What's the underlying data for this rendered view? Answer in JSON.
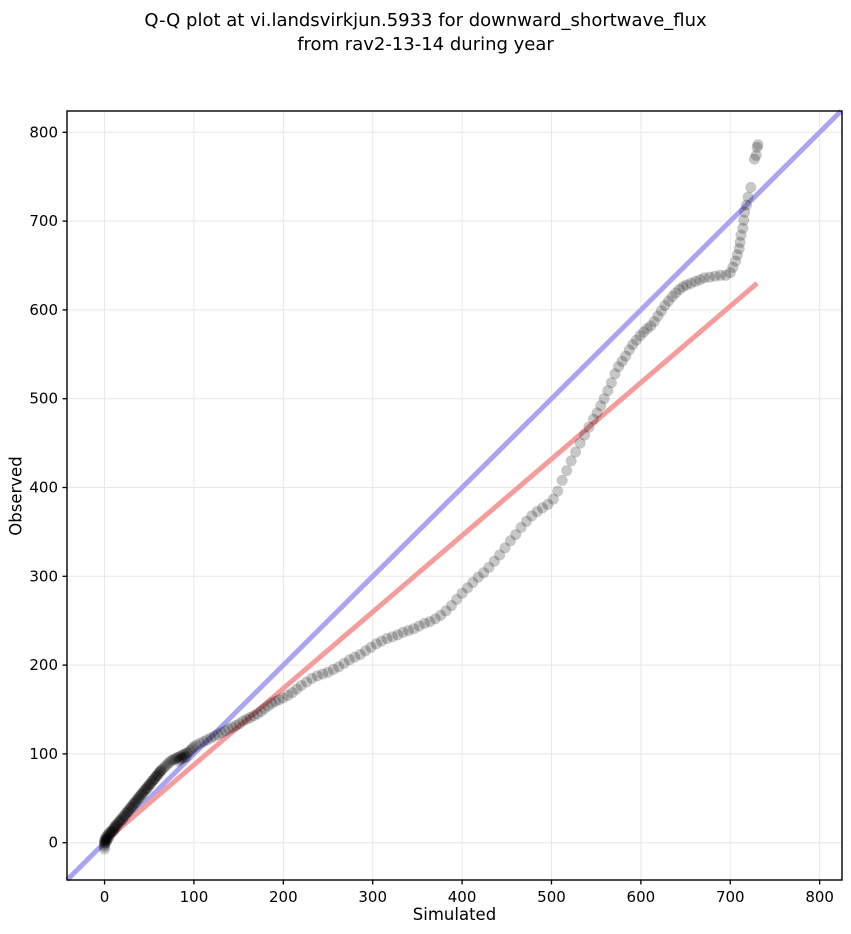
{
  "title": {
    "line1": "Q-Q plot at vi.landsvirkjun.5933 for downward_shortwave_flux",
    "line2": "from rav2-13-14 during year"
  },
  "colors": {
    "background": "#ffffff",
    "grid": "#e8e8e8",
    "spine": "#000000",
    "tick": "#000000",
    "identity_line": "#a9a5f3",
    "regression_line": "#f59c9c",
    "points": "#000000"
  },
  "chart_data": {
    "type": "scatter",
    "title": "Q-Q plot at vi.landsvirkjun.5933 for downward_shortwave_flux from rav2-13-14 during year",
    "xlabel": "Simulated",
    "ylabel": "Observed",
    "xlim": [
      -42,
      825
    ],
    "ylim": [
      -42,
      824
    ],
    "xticks": [
      0,
      100,
      200,
      300,
      400,
      500,
      600,
      700,
      800
    ],
    "yticks": [
      0,
      100,
      200,
      300,
      400,
      500,
      600,
      700,
      800
    ],
    "grid": true,
    "legend": "none",
    "lines": [
      {
        "name": "identity",
        "role": "y-equals-x-reference",
        "color": "#a9a5f3",
        "width": 5,
        "x1": -42,
        "y1": -42,
        "x2": 824,
        "y2": 824
      },
      {
        "name": "regression",
        "role": "linear-fit",
        "color": "#f59c9c",
        "width": 5,
        "x1": -3,
        "y1": -1,
        "x2": 730,
        "y2": 630
      }
    ],
    "points_style": {
      "color": "#000000",
      "opacity": 0.22,
      "radius_px": 5.5
    },
    "points": [
      [
        0,
        -7
      ],
      [
        0,
        -4
      ],
      [
        0,
        -2
      ],
      [
        0,
        0
      ],
      [
        0,
        2
      ],
      [
        1,
        0
      ],
      [
        1,
        3
      ],
      [
        1,
        5
      ],
      [
        2,
        1
      ],
      [
        2,
        4
      ],
      [
        2,
        7
      ],
      [
        3,
        3
      ],
      [
        3,
        6
      ],
      [
        4,
        5
      ],
      [
        4,
        9
      ],
      [
        5,
        7
      ],
      [
        5,
        11
      ],
      [
        6,
        9
      ],
      [
        7,
        11
      ],
      [
        7,
        13
      ],
      [
        8,
        12
      ],
      [
        9,
        14
      ],
      [
        10,
        13
      ],
      [
        10,
        16
      ],
      [
        11,
        17
      ],
      [
        12,
        16
      ],
      [
        12,
        19
      ],
      [
        13,
        20
      ],
      [
        14,
        19
      ],
      [
        15,
        22
      ],
      [
        16,
        23
      ],
      [
        17,
        25
      ],
      [
        18,
        24
      ],
      [
        19,
        27
      ],
      [
        20,
        26
      ],
      [
        21,
        29
      ],
      [
        22,
        31
      ],
      [
        23,
        30
      ],
      [
        24,
        33
      ],
      [
        25,
        34
      ],
      [
        26,
        36
      ],
      [
        27,
        35
      ],
      [
        28,
        38
      ],
      [
        29,
        39
      ],
      [
        30,
        41
      ],
      [
        31,
        40
      ],
      [
        32,
        43
      ],
      [
        33,
        44
      ],
      [
        34,
        46
      ],
      [
        35,
        45
      ],
      [
        36,
        48
      ],
      [
        37,
        49
      ],
      [
        38,
        51
      ],
      [
        39,
        50
      ],
      [
        40,
        53
      ],
      [
        41,
        54
      ],
      [
        42,
        56
      ],
      [
        43,
        55
      ],
      [
        44,
        58
      ],
      [
        45,
        59
      ],
      [
        46,
        60
      ],
      [
        47,
        62
      ],
      [
        48,
        61
      ],
      [
        49,
        64
      ],
      [
        50,
        65
      ],
      [
        51,
        66
      ],
      [
        52,
        67
      ],
      [
        53,
        69
      ],
      [
        54,
        70
      ],
      [
        55,
        71
      ],
      [
        56,
        72
      ],
      [
        57,
        74
      ],
      [
        58,
        75
      ],
      [
        59,
        76
      ],
      [
        60,
        77
      ],
      [
        61,
        79
      ],
      [
        62,
        80
      ],
      [
        63,
        81
      ],
      [
        64,
        82
      ],
      [
        66,
        84
      ],
      [
        68,
        86
      ],
      [
        70,
        88
      ],
      [
        72,
        90
      ],
      [
        74,
        92
      ],
      [
        76,
        93
      ],
      [
        78,
        94
      ],
      [
        80,
        95
      ],
      [
        82,
        96
      ],
      [
        83,
        92
      ],
      [
        84,
        97
      ],
      [
        85,
        94
      ],
      [
        86,
        98
      ],
      [
        87,
        95
      ],
      [
        88,
        99
      ],
      [
        89,
        96
      ],
      [
        90,
        100
      ],
      [
        91,
        97
      ],
      [
        92,
        101
      ],
      [
        94,
        102
      ],
      [
        96,
        104
      ],
      [
        98,
        106
      ],
      [
        100,
        108
      ],
      [
        103,
        110
      ],
      [
        107,
        112
      ],
      [
        111,
        114
      ],
      [
        115,
        116
      ],
      [
        119,
        118
      ],
      [
        123,
        120
      ],
      [
        127,
        122
      ],
      [
        131,
        124
      ],
      [
        135,
        126
      ],
      [
        139,
        128
      ],
      [
        143,
        130
      ],
      [
        147,
        132
      ],
      [
        151,
        134
      ],
      [
        155,
        137
      ],
      [
        159,
        139
      ],
      [
        163,
        141
      ],
      [
        167,
        143
      ],
      [
        171,
        145
      ],
      [
        175,
        148
      ],
      [
        179,
        151
      ],
      [
        183,
        154
      ],
      [
        187,
        157
      ],
      [
        191,
        159
      ],
      [
        195,
        161
      ],
      [
        200,
        163
      ],
      [
        205,
        166
      ],
      [
        210,
        169
      ],
      [
        215,
        173
      ],
      [
        220,
        177
      ],
      [
        226,
        181
      ],
      [
        232,
        185
      ],
      [
        238,
        188
      ],
      [
        244,
        190
      ],
      [
        250,
        192
      ],
      [
        256,
        195
      ],
      [
        262,
        198
      ],
      [
        268,
        202
      ],
      [
        274,
        206
      ],
      [
        280,
        209
      ],
      [
        286,
        212
      ],
      [
        292,
        216
      ],
      [
        298,
        220
      ],
      [
        304,
        224
      ],
      [
        310,
        227
      ],
      [
        316,
        230
      ],
      [
        322,
        232
      ],
      [
        328,
        234
      ],
      [
        334,
        237
      ],
      [
        340,
        239
      ],
      [
        346,
        241
      ],
      [
        352,
        244
      ],
      [
        358,
        247
      ],
      [
        364,
        249
      ],
      [
        370,
        252
      ],
      [
        376,
        256
      ],
      [
        382,
        261
      ],
      [
        388,
        267
      ],
      [
        394,
        274
      ],
      [
        400,
        281
      ],
      [
        406,
        287
      ],
      [
        412,
        293
      ],
      [
        418,
        299
      ],
      [
        424,
        304
      ],
      [
        430,
        310
      ],
      [
        436,
        317
      ],
      [
        442,
        324
      ],
      [
        448,
        332
      ],
      [
        454,
        340
      ],
      [
        460,
        347
      ],
      [
        466,
        355
      ],
      [
        472,
        362
      ],
      [
        478,
        368
      ],
      [
        484,
        373
      ],
      [
        490,
        377
      ],
      [
        496,
        381
      ],
      [
        502,
        387
      ],
      [
        507,
        396
      ],
      [
        512,
        408
      ],
      [
        517,
        419
      ],
      [
        522,
        430
      ],
      [
        527,
        440
      ],
      [
        532,
        450
      ],
      [
        537,
        459
      ],
      [
        542,
        468
      ],
      [
        547,
        477
      ],
      [
        551,
        484
      ],
      [
        555,
        492
      ],
      [
        559,
        500
      ],
      [
        563,
        509
      ],
      [
        567,
        518
      ],
      [
        571,
        528
      ],
      [
        575,
        536
      ],
      [
        579,
        542
      ],
      [
        583,
        548
      ],
      [
        587,
        555
      ],
      [
        591,
        561
      ],
      [
        595,
        566
      ],
      [
        599,
        571
      ],
      [
        603,
        575
      ],
      [
        607,
        579
      ],
      [
        611,
        582
      ],
      [
        615,
        587
      ],
      [
        619,
        593
      ],
      [
        623,
        599
      ],
      [
        627,
        605
      ],
      [
        631,
        610
      ],
      [
        635,
        615
      ],
      [
        639,
        619
      ],
      [
        643,
        623
      ],
      [
        647,
        626
      ],
      [
        651,
        628
      ],
      [
        656,
        630
      ],
      [
        661,
        632
      ],
      [
        666,
        634
      ],
      [
        671,
        636
      ],
      [
        677,
        637
      ],
      [
        683,
        638
      ],
      [
        689,
        639
      ],
      [
        695,
        639
      ],
      [
        700,
        642
      ],
      [
        703,
        648
      ],
      [
        706,
        655
      ],
      [
        708,
        662
      ],
      [
        710,
        669
      ],
      [
        711,
        676
      ],
      [
        712,
        684
      ],
      [
        714,
        692
      ],
      [
        715,
        701
      ],
      [
        716,
        710
      ],
      [
        718,
        718
      ],
      [
        720,
        727
      ],
      [
        723,
        738
      ],
      [
        727,
        770
      ],
      [
        729,
        774
      ],
      [
        730,
        783
      ],
      [
        731,
        786
      ]
    ]
  }
}
